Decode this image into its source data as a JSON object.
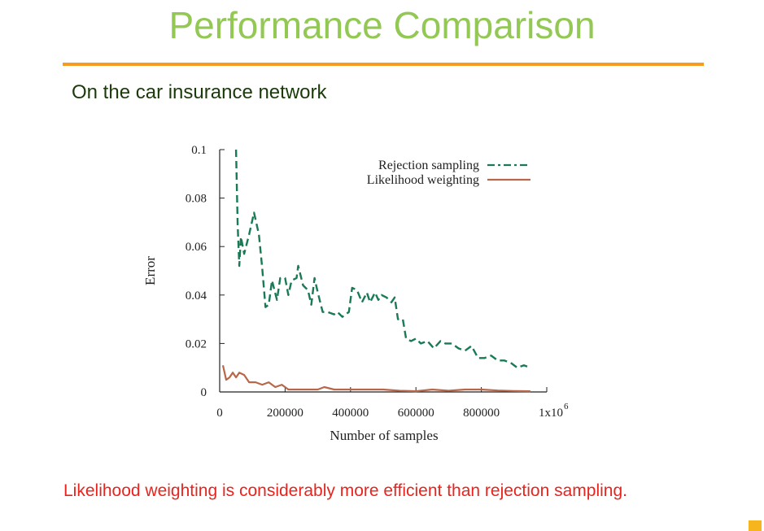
{
  "slide": {
    "title": "Performance Comparison",
    "subtitle": "On the car insurance network",
    "conclusion": "Likelihood weighting is considerably more efficient than rejection sampling."
  },
  "colors": {
    "title": "#92c853",
    "rule": "#f79a1d",
    "conclusion": "#e8241e",
    "rejection": "#1a7a55",
    "likelihood": "#b8684a"
  },
  "chart_data": {
    "type": "line",
    "xlabel": "Number of samples",
    "ylabel": "Error",
    "xlim": [
      0,
      1000000
    ],
    "ylim": [
      0,
      0.1
    ],
    "xticks": [
      0,
      200000,
      400000,
      600000,
      800000,
      1000000
    ],
    "xtick_labels": [
      "0",
      "200000",
      "400000",
      "600000",
      "800000",
      "1x10"
    ],
    "xtick_exponent": "6",
    "yticks": [
      0,
      0.02,
      0.04,
      0.06,
      0.08,
      0.1
    ],
    "ytick_labels": [
      "0",
      "0.02",
      "0.04",
      "0.06",
      "0.08",
      "0.1"
    ],
    "legend": "top-right",
    "series": [
      {
        "name": "Rejection sampling",
        "style": "dashed",
        "color": "#1a7a55",
        "points": [
          [
            50000,
            0.1
          ],
          [
            55000,
            0.069
          ],
          [
            60000,
            0.052
          ],
          [
            65000,
            0.064
          ],
          [
            75000,
            0.057
          ],
          [
            90000,
            0.065
          ],
          [
            105000,
            0.074
          ],
          [
            120000,
            0.065
          ],
          [
            130000,
            0.051
          ],
          [
            140000,
            0.035
          ],
          [
            150000,
            0.036
          ],
          [
            160000,
            0.046
          ],
          [
            175000,
            0.038
          ],
          [
            185000,
            0.047
          ],
          [
            200000,
            0.047
          ],
          [
            210000,
            0.04
          ],
          [
            220000,
            0.046
          ],
          [
            235000,
            0.047
          ],
          [
            240000,
            0.052
          ],
          [
            255000,
            0.044
          ],
          [
            270000,
            0.042
          ],
          [
            280000,
            0.036
          ],
          [
            290000,
            0.047
          ],
          [
            300000,
            0.041
          ],
          [
            315000,
            0.033
          ],
          [
            330000,
            0.033
          ],
          [
            350000,
            0.032
          ],
          [
            360000,
            0.033
          ],
          [
            375000,
            0.031
          ],
          [
            395000,
            0.033
          ],
          [
            405000,
            0.043
          ],
          [
            420000,
            0.042
          ],
          [
            435000,
            0.037
          ],
          [
            450000,
            0.041
          ],
          [
            460000,
            0.037
          ],
          [
            475000,
            0.041
          ],
          [
            485000,
            0.038
          ],
          [
            495000,
            0.04
          ],
          [
            510000,
            0.039
          ],
          [
            525000,
            0.037
          ],
          [
            535000,
            0.039
          ],
          [
            545000,
            0.03
          ],
          [
            560000,
            0.03
          ],
          [
            570000,
            0.022
          ],
          [
            585000,
            0.021
          ],
          [
            600000,
            0.022
          ],
          [
            615000,
            0.02
          ],
          [
            635000,
            0.021
          ],
          [
            655000,
            0.018
          ],
          [
            675000,
            0.021
          ],
          [
            690000,
            0.02
          ],
          [
            710000,
            0.02
          ],
          [
            730000,
            0.018
          ],
          [
            750000,
            0.017
          ],
          [
            770000,
            0.019
          ],
          [
            790000,
            0.014
          ],
          [
            810000,
            0.014
          ],
          [
            830000,
            0.015
          ],
          [
            850000,
            0.013
          ],
          [
            870000,
            0.013
          ],
          [
            890000,
            0.012
          ],
          [
            910000,
            0.01
          ],
          [
            930000,
            0.011
          ],
          [
            950000,
            0.01
          ]
        ]
      },
      {
        "name": "Likelihood weighting",
        "style": "solid",
        "color": "#b8684a",
        "points": [
          [
            10000,
            0.011
          ],
          [
            20000,
            0.005
          ],
          [
            30000,
            0.006
          ],
          [
            40000,
            0.008
          ],
          [
            50000,
            0.006
          ],
          [
            60000,
            0.008
          ],
          [
            75000,
            0.007
          ],
          [
            90000,
            0.004
          ],
          [
            110000,
            0.004
          ],
          [
            130000,
            0.003
          ],
          [
            150000,
            0.004
          ],
          [
            170000,
            0.002
          ],
          [
            190000,
            0.003
          ],
          [
            210000,
            0.001
          ],
          [
            240000,
            0.001
          ],
          [
            270000,
            0.001
          ],
          [
            300000,
            0.001
          ],
          [
            320000,
            0.002
          ],
          [
            350000,
            0.001
          ],
          [
            400000,
            0.001
          ],
          [
            450000,
            0.001
          ],
          [
            500000,
            0.001
          ],
          [
            550000,
            0.0005
          ],
          [
            600000,
            0.0003
          ],
          [
            650000,
            0.001
          ],
          [
            700000,
            0.0005
          ],
          [
            750000,
            0.001
          ],
          [
            800000,
            0.001
          ],
          [
            850000,
            0.0006
          ],
          [
            900000,
            0.0004
          ],
          [
            950000,
            0.0003
          ]
        ]
      }
    ]
  }
}
